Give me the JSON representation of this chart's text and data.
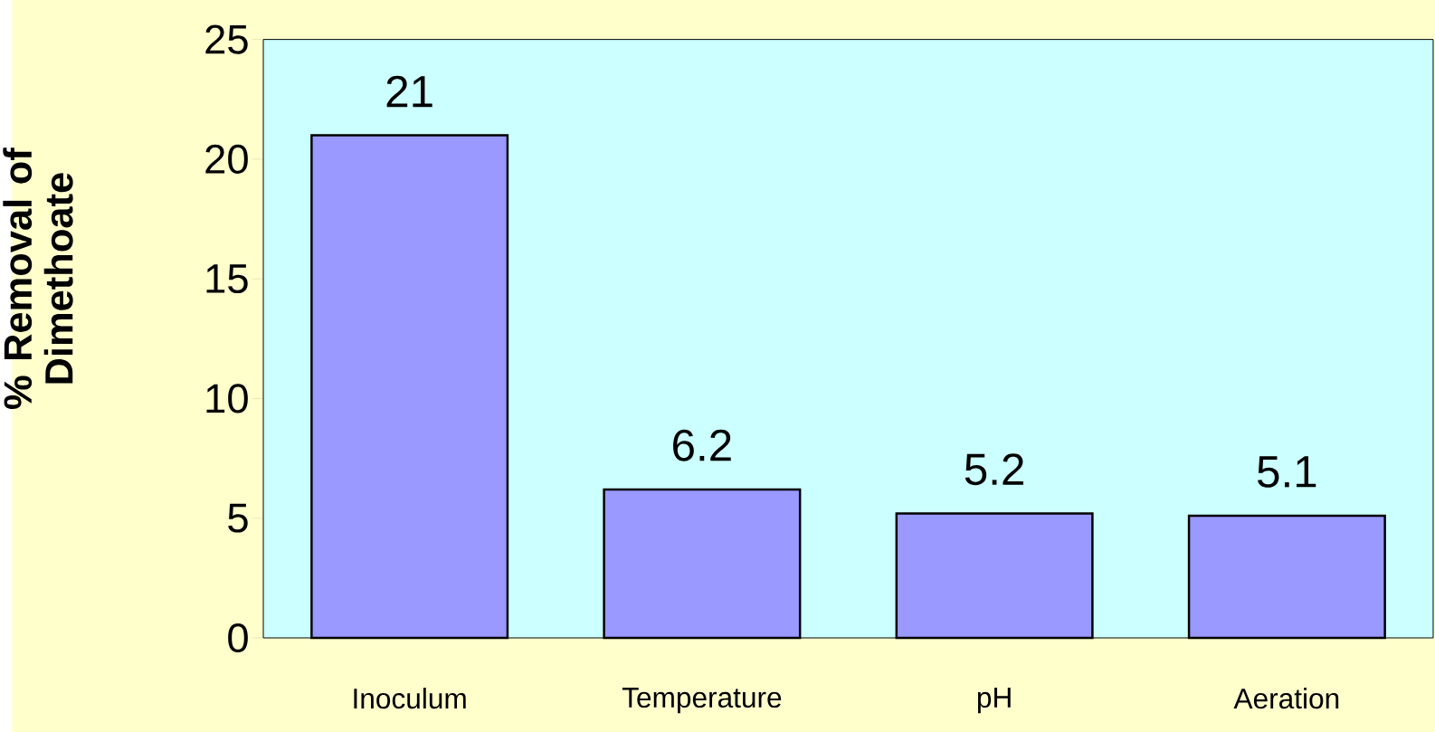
{
  "chart_data": {
    "type": "bar",
    "ylabel": "% Removal of Dimethoate",
    "categories": [
      "Inoculum",
      "Temperature",
      "pH",
      "Aeration"
    ],
    "values": [
      21,
      6.2,
      5.2,
      5.1
    ],
    "color": "#9999ff",
    "ylim": [
      0,
      25
    ],
    "yticks": [
      0,
      5,
      10,
      15,
      20,
      25
    ],
    "grid": false,
    "data_labels": true
  }
}
